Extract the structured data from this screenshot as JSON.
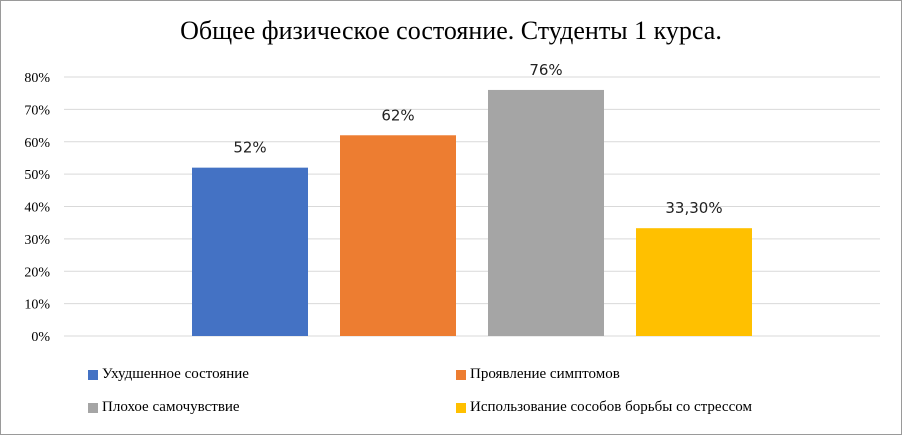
{
  "chart_data": {
    "type": "bar",
    "title": "Общее физическое состояние. Студенты 1 курса.",
    "categories": [
      "Ухудшенное состояние",
      "Проявление симптомов",
      "Плохое самочувствие",
      "Использование сособов борьбы со стрессом"
    ],
    "values": [
      52,
      62,
      76,
      33.3
    ],
    "data_labels": [
      "52%",
      "62%",
      "76%",
      "33,30%"
    ],
    "colors": [
      "#4472C4",
      "#ED7D31",
      "#A5A5A5",
      "#FFC000"
    ],
    "ylim": [
      0,
      80
    ],
    "yticks": [
      0,
      10,
      20,
      30,
      40,
      50,
      60,
      70,
      80
    ],
    "ytick_labels": [
      "0%",
      "10%",
      "20%",
      "30%",
      "40%",
      "50%",
      "60%",
      "70%",
      "80%"
    ],
    "grid": true,
    "legend_position": "bottom",
    "xlabel": "",
    "ylabel": ""
  }
}
